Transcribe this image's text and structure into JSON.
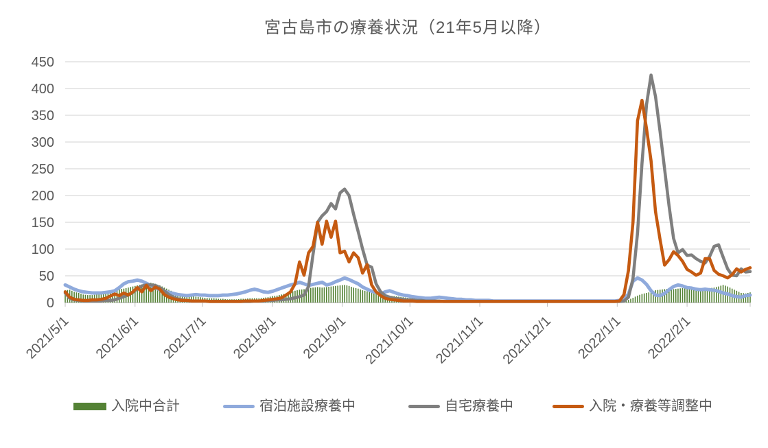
{
  "title": "宮古島市の療養状況（21年5月以降）",
  "text_color": "#595959",
  "gridline_color": "#D9D9D9",
  "axis_color": "#BFBFBF",
  "chart_data": {
    "type": "line",
    "subtype": "daily time series with bar series",
    "start_date": "2021/5/1",
    "end_date": "2022/3/1",
    "step_days": 2,
    "grid": "horizontal",
    "legend_position": "bottom",
    "y_axis": {
      "min": 0,
      "max": 450,
      "step": 50,
      "ticks": [
        "0",
        "50",
        "100",
        "150",
        "200",
        "250",
        "300",
        "350",
        "400",
        "450"
      ]
    },
    "x_ticks": [
      {
        "label": "2021/5/1",
        "day": 0
      },
      {
        "label": "2021/6/1",
        "day": 31
      },
      {
        "label": "2021/7/1",
        "day": 61
      },
      {
        "label": "2021/8/1",
        "day": 92
      },
      {
        "label": "2021/9/1",
        "day": 123
      },
      {
        "label": "2021/10/1",
        "day": 153
      },
      {
        "label": "2021/11/1",
        "day": 184
      },
      {
        "label": "2021/12/1",
        "day": 214
      },
      {
        "label": "2022/1/1",
        "day": 245
      },
      {
        "label": "2022/2/1",
        "day": 276
      },
      {
        "label": "",
        "day": 304
      }
    ],
    "series": [
      {
        "name": "入院中合計",
        "key": "hospitalized-total",
        "type": "bar",
        "color": "#548235",
        "values": [
          23,
          24,
          20,
          18,
          15,
          14,
          14,
          15,
          16,
          18,
          20,
          22,
          25,
          26,
          28,
          30,
          32,
          34,
          36,
          37,
          35,
          32,
          28,
          24,
          20,
          17,
          15,
          13,
          12,
          11,
          10,
          9,
          8,
          8,
          7,
          7,
          6,
          6,
          6,
          7,
          7,
          8,
          8,
          8,
          9,
          10,
          12,
          13,
          15,
          17,
          20,
          22,
          24,
          25,
          27,
          28,
          29,
          28,
          29,
          30,
          31,
          32,
          33,
          31,
          28,
          26,
          23,
          21,
          18,
          16,
          15,
          14,
          13,
          12,
          11,
          10,
          9,
          8,
          7,
          6,
          6,
          5,
          5,
          5,
          4,
          4,
          3,
          3,
          3,
          2,
          2,
          2,
          1,
          1,
          1,
          1,
          0,
          0,
          0,
          0,
          0,
          1,
          0,
          0,
          0,
          0,
          0,
          0,
          0,
          0,
          0,
          0,
          0,
          0,
          0,
          0,
          0,
          0,
          0,
          0,
          0,
          0,
          0,
          0,
          2,
          5,
          9,
          13,
          16,
          18,
          20,
          23,
          24,
          25,
          26,
          25,
          26,
          27,
          26,
          25,
          26,
          27,
          28,
          27,
          28,
          30,
          33,
          30,
          26,
          22,
          18,
          17,
          19
        ]
      },
      {
        "name": "宿泊施設療養中",
        "key": "hotel-care",
        "type": "line",
        "color": "#8FAADC",
        "values": [
          33,
          29,
          25,
          22,
          20,
          19,
          18,
          18,
          18,
          19,
          20,
          22,
          28,
          35,
          39,
          40,
          42,
          40,
          36,
          32,
          28,
          24,
          21,
          19,
          17,
          15,
          14,
          13,
          14,
          15,
          14,
          14,
          13,
          13,
          13,
          14,
          14,
          15,
          16,
          18,
          20,
          23,
          25,
          23,
          20,
          19,
          21,
          24,
          27,
          30,
          33,
          35,
          38,
          35,
          32,
          34,
          36,
          38,
          33,
          35,
          39,
          42,
          46,
          43,
          39,
          35,
          29,
          25,
          21,
          19,
          16,
          20,
          22,
          19,
          16,
          14,
          13,
          11,
          10,
          9,
          8,
          8,
          9,
          10,
          9,
          8,
          7,
          6,
          6,
          5,
          5,
          4,
          4,
          4,
          4,
          3,
          3,
          3,
          3,
          3,
          3,
          3,
          3,
          3,
          3,
          3,
          3,
          3,
          3,
          3,
          3,
          3,
          3,
          3,
          3,
          3,
          3,
          3,
          3,
          3,
          3,
          3,
          3,
          4,
          6,
          16,
          40,
          46,
          42,
          34,
          22,
          14,
          13,
          17,
          24,
          30,
          33,
          31,
          28,
          27,
          25,
          24,
          25,
          24,
          23,
          21,
          18,
          16,
          13,
          11,
          10,
          13,
          14
        ]
      },
      {
        "name": "自宅療養中",
        "key": "home-care",
        "type": "line",
        "color": "#7F7F7F",
        "values": [
          18,
          8,
          5,
          4,
          3,
          3,
          3,
          3,
          3,
          4,
          4,
          5,
          8,
          11,
          14,
          19,
          26,
          31,
          33,
          33,
          32,
          28,
          22,
          15,
          10,
          7,
          5,
          4,
          3,
          3,
          3,
          3,
          2,
          2,
          2,
          2,
          2,
          2,
          2,
          2,
          2,
          2,
          3,
          3,
          3,
          4,
          4,
          5,
          5,
          6,
          7,
          9,
          11,
          14,
          30,
          90,
          150,
          162,
          170,
          185,
          175,
          205,
          212,
          200,
          165,
          133,
          100,
          70,
          66,
          35,
          20,
          13,
          10,
          8,
          7,
          6,
          5,
          5,
          4,
          4,
          3,
          3,
          3,
          3,
          2,
          2,
          2,
          2,
          2,
          2,
          2,
          2,
          2,
          2,
          2,
          2,
          2,
          2,
          2,
          2,
          2,
          2,
          2,
          2,
          2,
          2,
          2,
          2,
          2,
          2,
          2,
          2,
          2,
          2,
          2,
          2,
          2,
          2,
          2,
          2,
          2,
          2,
          2,
          2,
          3,
          10,
          45,
          130,
          260,
          370,
          425,
          385,
          320,
          250,
          181,
          120,
          93,
          99,
          88,
          89,
          82,
          77,
          74,
          86,
          105,
          108,
          85,
          63,
          51,
          50,
          63,
          57,
          58
        ]
      },
      {
        "name": "入院・療養等調整中",
        "key": "adjustment-pending",
        "type": "line",
        "color": "#C55A11",
        "values": [
          20,
          10,
          6,
          5,
          4,
          4,
          5,
          5,
          6,
          8,
          12,
          16,
          13,
          18,
          14,
          20,
          28,
          20,
          32,
          22,
          29,
          25,
          15,
          10,
          7,
          5,
          4,
          4,
          3,
          3,
          3,
          3,
          2,
          2,
          2,
          2,
          2,
          2,
          2,
          2,
          3,
          3,
          3,
          3,
          4,
          5,
          6,
          7,
          9,
          14,
          20,
          35,
          76,
          51,
          93,
          105,
          150,
          109,
          152,
          122,
          152,
          93,
          96,
          76,
          93,
          84,
          55,
          71,
          33,
          20,
          13,
          8,
          6,
          5,
          4,
          3,
          3,
          3,
          2,
          2,
          2,
          2,
          2,
          2,
          2,
          2,
          2,
          2,
          2,
          2,
          2,
          2,
          2,
          2,
          2,
          2,
          2,
          2,
          2,
          2,
          2,
          2,
          2,
          2,
          2,
          2,
          2,
          2,
          2,
          2,
          2,
          2,
          2,
          2,
          2,
          2,
          2,
          2,
          2,
          2,
          2,
          2,
          2,
          3,
          15,
          60,
          150,
          340,
          378,
          325,
          265,
          170,
          118,
          70,
          80,
          95,
          88,
          77,
          62,
          57,
          51,
          55,
          82,
          82,
          60,
          53,
          50,
          46,
          52,
          63,
          57,
          62,
          65
        ]
      }
    ]
  }
}
